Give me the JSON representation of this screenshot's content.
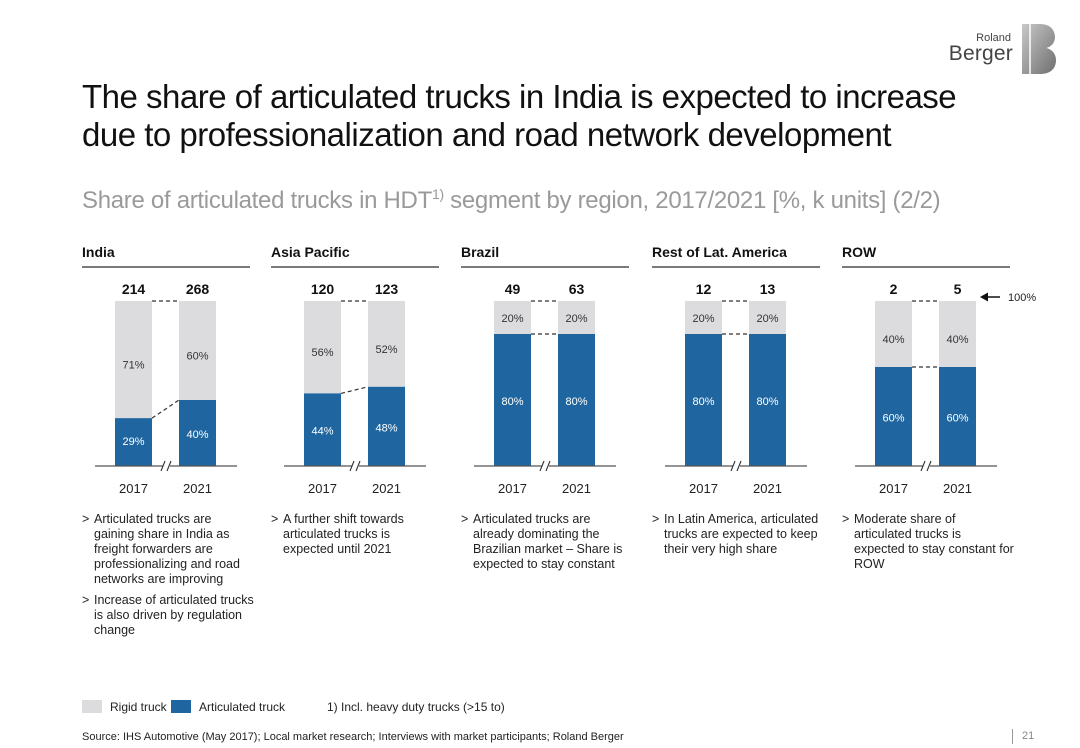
{
  "brand": {
    "line1": "Roland",
    "line2": "Berger"
  },
  "title": "The share of articulated trucks in India is expected to increase due to professionalization and road network development",
  "subtitle": {
    "text": "Share of articulated trucks in HDT",
    "sup": "1)",
    "rest": " segment by region, 2017/2021 [%, k units] (2/2)"
  },
  "colors": {
    "rigid": "#dcdcdf",
    "articulated": "#1f66a0",
    "header_rule": "#7a7a7a",
    "subtitle": "#9a9a9a"
  },
  "chart_data": {
    "type": "stacked_bar_100",
    "unit": "%",
    "total_unit": "k units",
    "categories": [
      "2017",
      "2021"
    ],
    "reference_label": "100%",
    "panels": [
      {
        "region": "India",
        "totals": [
          214,
          268
        ],
        "articulated": [
          29,
          40
        ],
        "rigid": [
          71,
          60
        ]
      },
      {
        "region": "Asia Pacific",
        "totals": [
          120,
          123
        ],
        "articulated": [
          44,
          48
        ],
        "rigid": [
          56,
          52
        ]
      },
      {
        "region": "Brazil",
        "totals": [
          49,
          63
        ],
        "articulated": [
          80,
          80
        ],
        "rigid": [
          20,
          20
        ]
      },
      {
        "region": "Rest of Lat. America",
        "totals": [
          12,
          13
        ],
        "articulated": [
          80,
          80
        ],
        "rigid": [
          20,
          20
        ]
      },
      {
        "region": "ROW",
        "totals": [
          2,
          5
        ],
        "articulated": [
          60,
          60
        ],
        "rigid": [
          40,
          40
        ]
      }
    ]
  },
  "commentary": [
    [
      "Articulated trucks are gaining share in India as freight forwarders are professionalizing and road networks are improving",
      "Increase of articulated trucks is also driven by regulation change"
    ],
    [
      "A further shift towards articulated trucks is expected until 2021"
    ],
    [
      "Articulated trucks are already dominating the Brazilian market – Share is expected to stay constant"
    ],
    [
      "In Latin America, articulated trucks are expected to keep their very high share"
    ],
    [
      "Moderate share of articulated trucks is expected to stay constant for ROW"
    ]
  ],
  "legend": {
    "rigid": "Rigid truck",
    "articulated": "Articulated truck"
  },
  "footnote": "1) Incl. heavy duty trucks (>15 to)",
  "source": "Source: IHS Automotive (May 2017); Local market research; Interviews with market participants; Roland Berger",
  "page_number": "21"
}
